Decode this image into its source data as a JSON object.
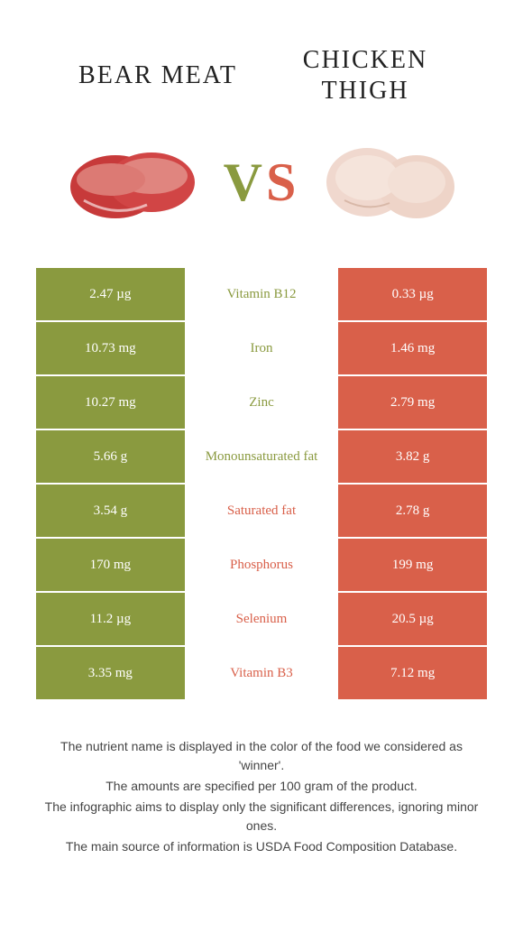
{
  "leftFood": "Bear meat",
  "rightFood": "Chicken thigh",
  "colors": {
    "green": "#8a9a3f",
    "orange": "#d9604a"
  },
  "rows": [
    {
      "left": "2.47 µg",
      "label": "Vitamin B12",
      "right": "0.33 µg",
      "winner": "green"
    },
    {
      "left": "10.73 mg",
      "label": "Iron",
      "right": "1.46 mg",
      "winner": "green"
    },
    {
      "left": "10.27 mg",
      "label": "Zinc",
      "right": "2.79 mg",
      "winner": "green"
    },
    {
      "left": "5.66 g",
      "label": "Monounsaturated fat",
      "right": "3.82 g",
      "winner": "green"
    },
    {
      "left": "3.54 g",
      "label": "Saturated fat",
      "right": "2.78 g",
      "winner": "orange"
    },
    {
      "left": "170 mg",
      "label": "Phosphorus",
      "right": "199 mg",
      "winner": "orange"
    },
    {
      "left": "11.2 µg",
      "label": "Selenium",
      "right": "20.5 µg",
      "winner": "orange"
    },
    {
      "left": "3.35 mg",
      "label": "Vitamin B3",
      "right": "7.12 mg",
      "winner": "orange"
    }
  ],
  "footer": [
    "The nutrient name is displayed in the color of the food we considered as 'winner'.",
    "The amounts are specified per 100 gram of the product.",
    "The infographic aims to display only the significant differences, ignoring minor ones.",
    "The main source of information is USDA Food Composition Database."
  ]
}
